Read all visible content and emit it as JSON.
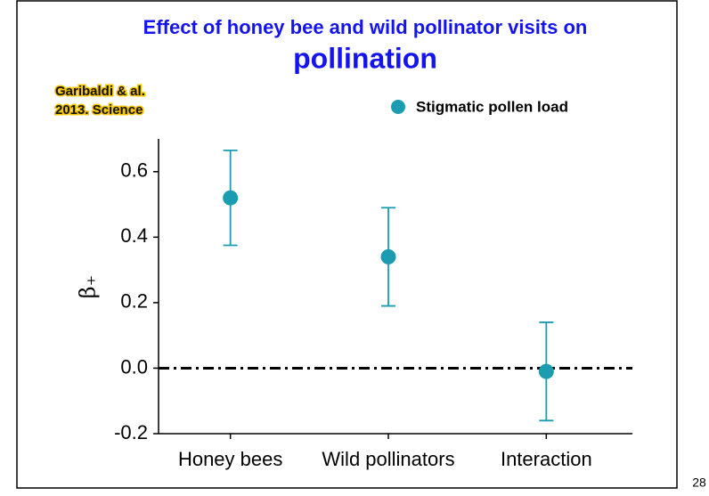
{
  "chart_data": {
    "type": "errorbar",
    "title": "Effect of honey bee and wild pollinator visits on",
    "subtitle": "pollination",
    "annotation": [
      "Garibaldi & al.",
      "2013. Science"
    ],
    "page_number": "28",
    "ylabel": "β₊",
    "categories": [
      "Honey bees",
      "Wild pollinators",
      "Interaction"
    ],
    "series": [
      {
        "name": "Stigmatic pollen load",
        "color": "#1b9cb1",
        "values": [
          0.52,
          0.34,
          -0.01
        ],
        "errors": [
          0.145,
          0.15,
          0.15
        ]
      }
    ],
    "ylim": [
      -0.2,
      0.7
    ],
    "yticks": [
      {
        "value": -0.2,
        "label": "-0.2"
      },
      {
        "value": 0,
        "label": "0.0"
      },
      0.2,
      0.4,
      0.6
    ],
    "reference_line": 0,
    "legend": "top-right"
  }
}
